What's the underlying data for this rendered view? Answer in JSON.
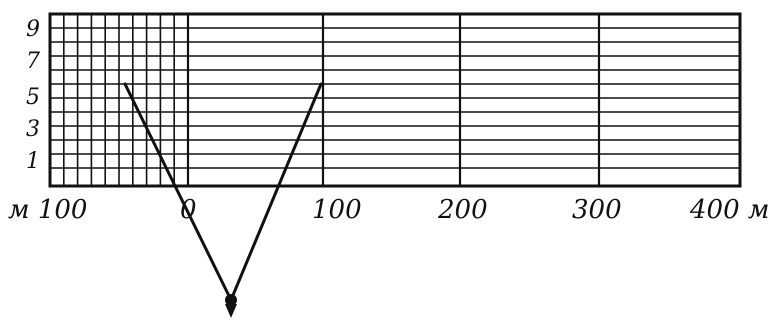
{
  "diagram": {
    "row_labels": [
      "9",
      "7",
      "5",
      "3",
      "1"
    ],
    "axis_labels": [
      "м 100",
      "0",
      "100",
      "200",
      "300",
      "400 м"
    ],
    "horizontal_line_count": 12,
    "major_divisions_m": [
      0,
      100,
      200,
      300,
      400
    ],
    "fine_grid_range_m": [
      -100,
      0
    ],
    "fine_grid_columns": 10
  }
}
